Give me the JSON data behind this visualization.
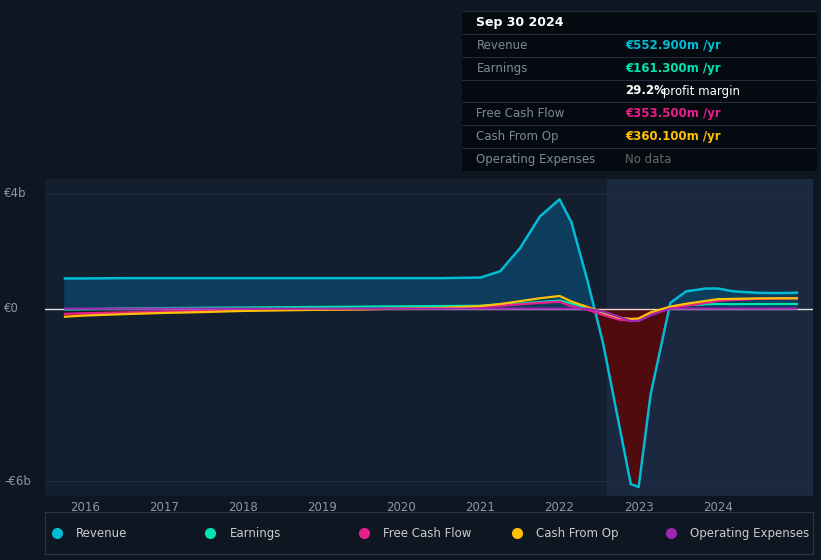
{
  "bg_color": "#0e1621",
  "plot_bg_color": "#0e1621",
  "chart_inner_bg": "#131e2e",
  "title": "Sep 30 2024",
  "ylim": [
    -6500,
    4500
  ],
  "ytick_positions": [
    -6000,
    0,
    4000
  ],
  "ytick_labels": [
    "-€6b",
    "€0",
    "€4b"
  ],
  "xlim": [
    2015.5,
    2025.2
  ],
  "xticks": [
    2016,
    2017,
    2018,
    2019,
    2020,
    2021,
    2022,
    2023,
    2024
  ],
  "highlight_start": 2022.6,
  "highlight_end": 2025.3,
  "years": [
    2015.75,
    2016.0,
    2016.5,
    2017.0,
    2017.5,
    2018.0,
    2018.5,
    2019.0,
    2019.5,
    2020.0,
    2020.5,
    2021.0,
    2021.25,
    2021.5,
    2021.75,
    2022.0,
    2022.15,
    2022.35,
    2022.55,
    2022.75,
    2022.9,
    2023.0,
    2023.15,
    2023.4,
    2023.6,
    2023.85,
    2024.0,
    2024.2,
    2024.5,
    2024.75,
    2025.0
  ],
  "revenue": [
    1050,
    1050,
    1060,
    1060,
    1060,
    1060,
    1060,
    1060,
    1060,
    1060,
    1060,
    1080,
    1300,
    2100,
    3200,
    3800,
    3000,
    1000,
    -1200,
    -4000,
    -6100,
    -6200,
    -3000,
    200,
    600,
    700,
    700,
    600,
    550,
    540,
    553
  ],
  "earnings": [
    -30,
    -20,
    10,
    20,
    30,
    40,
    50,
    60,
    70,
    80,
    90,
    100,
    150,
    180,
    230,
    280,
    180,
    20,
    -150,
    -350,
    -420,
    -390,
    -200,
    50,
    120,
    150,
    160,
    155,
    160,
    161,
    161
  ],
  "free_cash_flow": [
    -180,
    -160,
    -130,
    -100,
    -80,
    -60,
    -40,
    -30,
    -20,
    -5,
    10,
    50,
    100,
    150,
    200,
    240,
    80,
    -40,
    -220,
    -380,
    -420,
    -400,
    -180,
    30,
    100,
    200,
    270,
    300,
    340,
    353,
    353
  ],
  "cash_from_op": [
    -280,
    -240,
    -190,
    -150,
    -120,
    -80,
    -60,
    -40,
    -25,
    0,
    25,
    90,
    160,
    260,
    360,
    440,
    250,
    60,
    -130,
    -310,
    -360,
    -340,
    -130,
    70,
    170,
    270,
    330,
    340,
    355,
    360,
    360
  ],
  "opex": [
    0,
    0,
    0,
    0,
    0,
    0,
    0,
    0,
    0,
    0,
    0,
    0,
    0,
    0,
    0,
    0,
    0,
    0,
    -100,
    -280,
    -430,
    -430,
    -230,
    0,
    0,
    0,
    0,
    0,
    0,
    0,
    0
  ],
  "revenue_color": "#00bcd4",
  "earnings_color": "#00e5b0",
  "fcf_color": "#e91e8c",
  "cfo_color": "#ffc107",
  "opex_color": "#9c27b0",
  "fill_revenue_pos": "#0d3d5c",
  "fill_revenue_neg": "#2a0a0a",
  "fill_neg_red": "#8b0000",
  "legend": [
    {
      "label": "Revenue",
      "color": "#00bcd4"
    },
    {
      "label": "Earnings",
      "color": "#00e5b0"
    },
    {
      "label": "Free Cash Flow",
      "color": "#e91e8c"
    },
    {
      "label": "Cash From Op",
      "color": "#ffc107"
    },
    {
      "label": "Operating Expenses",
      "color": "#9c27b0"
    }
  ],
  "table_rows": [
    {
      "label": "Sep 30 2024",
      "value": null,
      "color": null,
      "header": true
    },
    {
      "label": "Revenue",
      "value": "€552.900m /yr",
      "color": "#00bcd4",
      "header": false
    },
    {
      "label": "Earnings",
      "value": "€161.300m /yr",
      "color": "#00e5b0",
      "header": false
    },
    {
      "label": "",
      "value": "29.2% profit margin",
      "color": "#ffffff",
      "header": false
    },
    {
      "label": "Free Cash Flow",
      "value": "€353.500m /yr",
      "color": "#e91e8c",
      "header": false
    },
    {
      "label": "Cash From Op",
      "value": "€360.100m /yr",
      "color": "#ffc107",
      "header": false
    },
    {
      "label": "Operating Expenses",
      "value": "No data",
      "color": "#666666",
      "header": false
    }
  ]
}
